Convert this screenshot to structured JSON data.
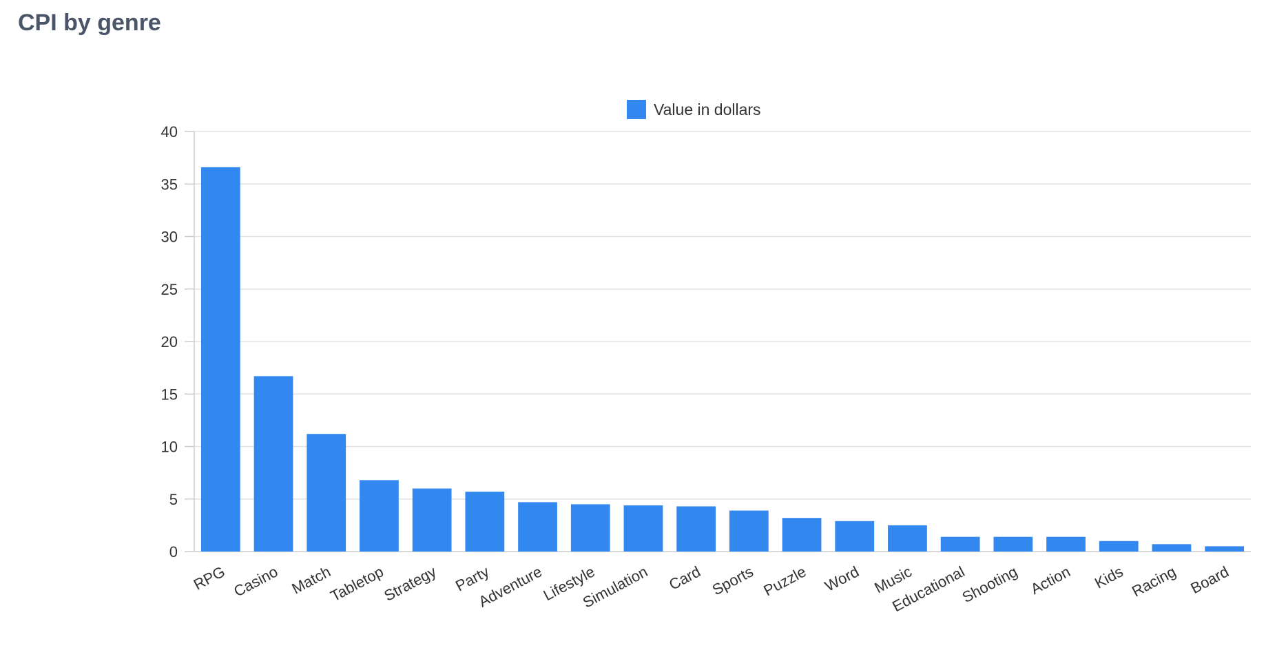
{
  "page": {
    "title": "CPI by genre"
  },
  "chart_data": {
    "type": "bar",
    "title": "",
    "xlabel": "",
    "ylabel": "",
    "legend": {
      "placement": "top-center"
    },
    "grid": true,
    "ylim": [
      0,
      40
    ],
    "yticks": [
      "0",
      "5",
      "10",
      "15",
      "20",
      "25",
      "30",
      "35",
      "40"
    ],
    "categories": [
      "RPG",
      "Casino",
      "Match",
      "Tabletop",
      "Strategy",
      "Party",
      "Adventure",
      "Lifestyle",
      "Simulation",
      "Card",
      "Sports",
      "Puzzle",
      "Word",
      "Music",
      "Educational",
      "Shooting",
      "Action",
      "Kids",
      "Racing",
      "Board"
    ],
    "series": [
      {
        "name": "Value in dollars",
        "color": "#3388f0",
        "values": [
          36.6,
          16.7,
          11.2,
          6.8,
          6.0,
          5.7,
          4.7,
          4.5,
          4.4,
          4.3,
          3.9,
          3.2,
          2.9,
          2.5,
          1.4,
          1.4,
          1.4,
          1.0,
          0.7,
          0.5
        ]
      }
    ]
  }
}
